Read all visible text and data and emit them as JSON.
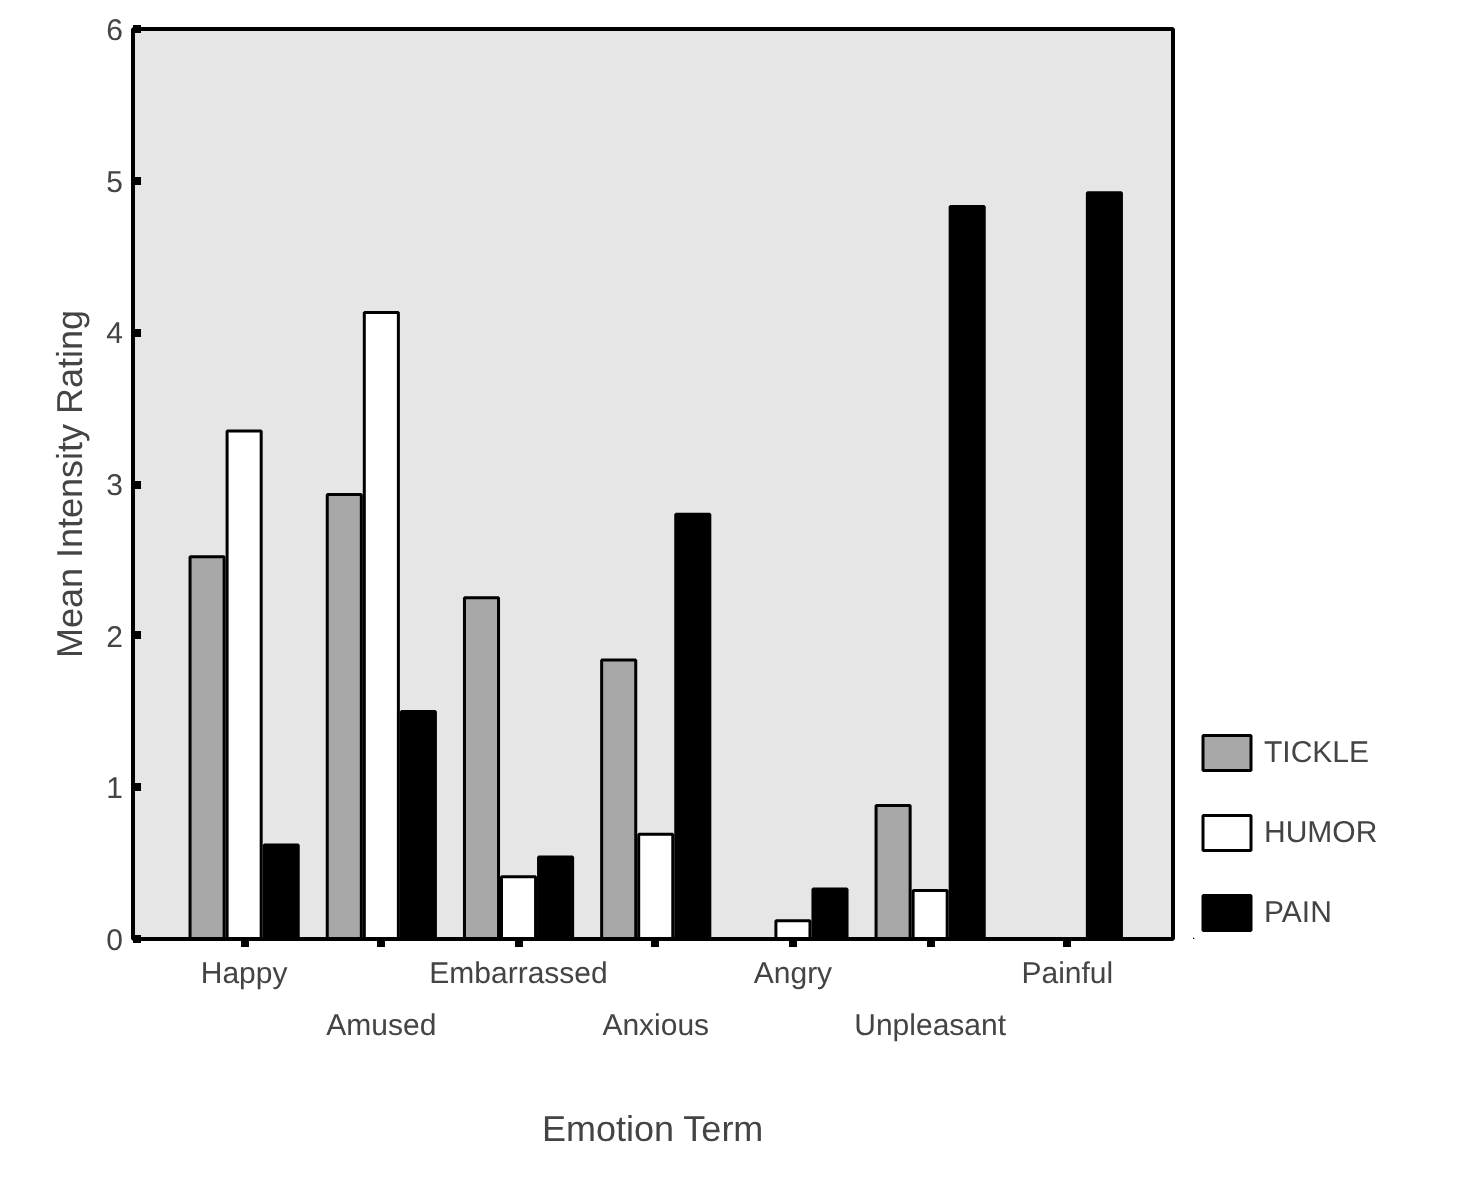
{
  "chart_data": {
    "type": "bar",
    "xlabel": "Emotion Term",
    "ylabel": "Mean Intensity Rating",
    "categories": [
      "Happy",
      "Amused",
      "Embarrassed",
      "Anxious",
      "Angry",
      "Unpleasant",
      "Painful"
    ],
    "series": [
      {
        "name": "TICKLE",
        "color": "#a8a8a8",
        "values": [
          2.52,
          2.93,
          2.25,
          1.84,
          null,
          0.88,
          null
        ]
      },
      {
        "name": "HUMOR",
        "color": "#ffffff",
        "values": [
          3.35,
          4.13,
          0.41,
          0.69,
          0.12,
          0.32,
          null
        ]
      },
      {
        "name": "PAIN",
        "color": "#000000",
        "values": [
          0.62,
          1.5,
          0.54,
          2.8,
          0.33,
          4.83,
          4.92
        ]
      }
    ],
    "ylim": [
      0,
      6
    ],
    "yticks": [
      0,
      1,
      2,
      3,
      4,
      5,
      6
    ],
    "grid": false,
    "legend": "bottom right"
  }
}
